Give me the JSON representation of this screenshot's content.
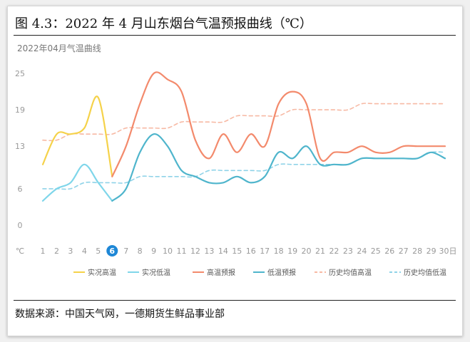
{
  "figure": {
    "title": "图 4.3：2022 年 4 月山东烟台气温预报曲线（℃）",
    "source": "数据来源：中国天气网，一德期货生鲜品事业部"
  },
  "colors": {
    "actual_high": "#f5d24a",
    "actual_low": "#7fd6ea",
    "forecast_high": "#f38a6c",
    "forecast_low": "#4fb5cc",
    "hist_high": "#f7b9a4",
    "hist_low": "#8fd3e8",
    "today_marker": "#1e87d6"
  },
  "chart_data": {
    "type": "line",
    "title": "2022年04月气温曲线",
    "ylabel": "℃",
    "x_unit": "日",
    "x": [
      1,
      2,
      3,
      4,
      5,
      6,
      7,
      8,
      9,
      10,
      11,
      12,
      13,
      14,
      15,
      16,
      17,
      18,
      19,
      20,
      21,
      22,
      23,
      24,
      25,
      26,
      27,
      28,
      29,
      30
    ],
    "x_labels": [
      "1",
      "2",
      "3",
      "4",
      "5",
      "6",
      "7",
      "8",
      "9",
      "10",
      "11",
      "12",
      "13",
      "14",
      "15",
      "16",
      "17",
      "18",
      "19",
      "20",
      "21",
      "22",
      "23",
      "24",
      "25",
      "26",
      "27",
      "28",
      "29",
      "30"
    ],
    "x_last_label": "30日",
    "highlight_x": 6,
    "ylim": [
      0,
      25
    ],
    "yticks": [
      0,
      6,
      13,
      19,
      25
    ],
    "grid": false,
    "legend_position": "bottom",
    "series": [
      {
        "name": "实况高温",
        "style": "solid",
        "x": [
          1,
          2,
          3,
          4,
          5,
          6
        ],
        "values": [
          10,
          15,
          15,
          16,
          21,
          8
        ]
      },
      {
        "name": "实况低温",
        "style": "solid",
        "x": [
          1,
          2,
          3,
          4,
          5,
          6
        ],
        "values": [
          4,
          6,
          7,
          10,
          7,
          4
        ]
      },
      {
        "name": "高温预报",
        "style": "solid",
        "x": [
          6,
          7,
          8,
          9,
          10,
          11,
          12,
          13,
          14,
          15,
          16,
          17,
          18,
          19,
          20,
          21,
          22,
          23,
          24,
          25,
          26,
          27,
          28,
          29,
          30
        ],
        "values": [
          8,
          13,
          20,
          25,
          24,
          22,
          14,
          11,
          15,
          12,
          15,
          13,
          20,
          22,
          20,
          11,
          12,
          12,
          13,
          12,
          12,
          13,
          13,
          13,
          13
        ]
      },
      {
        "name": "低温预报",
        "style": "solid",
        "x": [
          6,
          7,
          8,
          9,
          10,
          11,
          12,
          13,
          14,
          15,
          16,
          17,
          18,
          19,
          20,
          21,
          22,
          23,
          24,
          25,
          26,
          27,
          28,
          29,
          30
        ],
        "values": [
          4,
          6,
          12,
          15,
          13,
          9,
          8,
          7,
          7,
          8,
          7,
          8,
          12,
          11,
          13,
          10,
          10,
          10,
          11,
          11,
          11,
          11,
          11,
          12,
          11
        ]
      },
      {
        "name": "历史均值高温",
        "style": "dashed",
        "x": [
          1,
          2,
          3,
          4,
          5,
          6,
          7,
          8,
          9,
          10,
          11,
          12,
          13,
          14,
          15,
          16,
          17,
          18,
          19,
          20,
          21,
          22,
          23,
          24,
          25,
          26,
          27,
          28,
          29,
          30
        ],
        "values": [
          14,
          14,
          15,
          15,
          15,
          15,
          16,
          16,
          16,
          16,
          17,
          17,
          17,
          17,
          18,
          18,
          18,
          18,
          19,
          19,
          19,
          19,
          19,
          20,
          20,
          20,
          20,
          20,
          20,
          20
        ]
      },
      {
        "name": "历史均值低温",
        "style": "dashed",
        "x": [
          1,
          2,
          3,
          4,
          5,
          6,
          7,
          8,
          9,
          10,
          11,
          12,
          13,
          14,
          15,
          16,
          17,
          18,
          19,
          20,
          21,
          22,
          23,
          24,
          25,
          26,
          27,
          28,
          29,
          30
        ],
        "values": [
          6,
          6,
          6,
          7,
          7,
          7,
          7,
          8,
          8,
          8,
          8,
          8,
          9,
          9,
          9,
          9,
          9,
          10,
          10,
          10,
          10,
          10,
          10,
          11,
          11,
          11,
          11,
          11,
          12,
          12
        ]
      }
    ]
  }
}
